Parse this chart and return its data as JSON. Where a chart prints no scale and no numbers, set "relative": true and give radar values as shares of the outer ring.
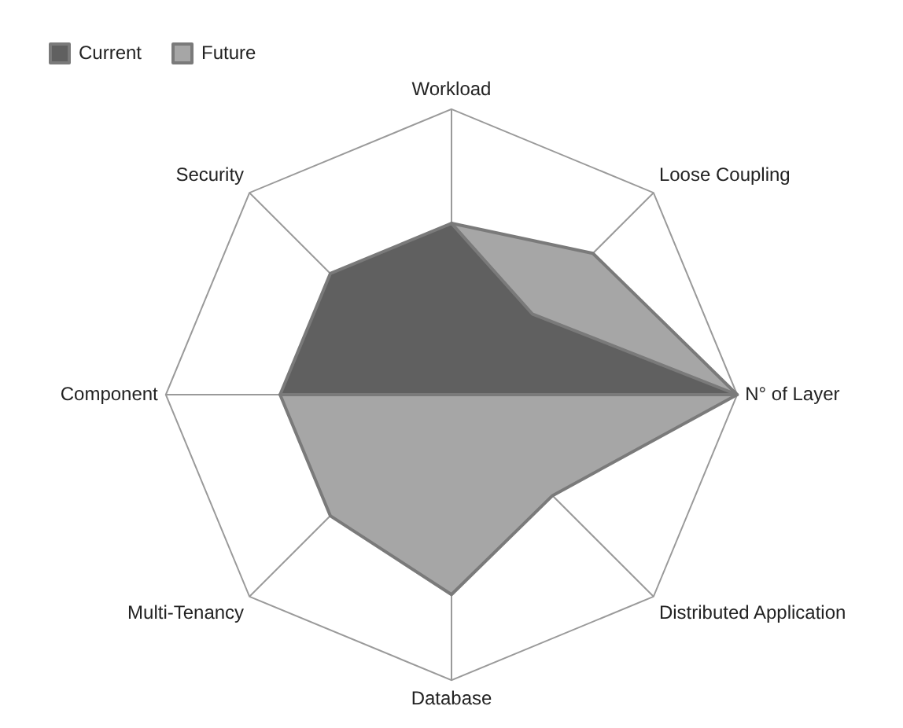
{
  "chart_data": {
    "type": "radar",
    "relative": true,
    "categories": [
      "Workload",
      "Loose Coupling",
      "N° of Layer",
      "Distributed Application",
      "Database",
      "Multi-Tenancy",
      "Component",
      "Security"
    ],
    "series": [
      {
        "name": "Current",
        "color": "#606060",
        "values": [
          0.6,
          0.4,
          1,
          0,
          0,
          0,
          0.6,
          0.6
        ]
      },
      {
        "name": "Future",
        "color": "#a6a6a6",
        "values": [
          0.6,
          0.7,
          1,
          0.5,
          0.7,
          0.6,
          0.6,
          null
        ]
      }
    ],
    "grid": true,
    "legend": "top left",
    "marker": "none"
  }
}
